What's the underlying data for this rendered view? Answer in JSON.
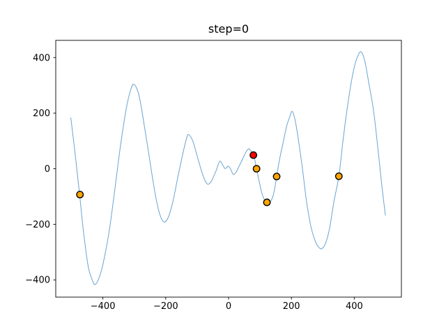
{
  "chart_data": {
    "type": "line",
    "title": "step=0",
    "xlabel": "",
    "ylabel": "",
    "xlim": [
      -550,
      550
    ],
    "ylim": [
      -462,
      462
    ],
    "grid": false,
    "legend": null,
    "xticks": [
      -400,
      -200,
      0,
      200,
      400
    ],
    "xtick_labels": [
      "−400",
      "−200",
      "0",
      "200",
      "400"
    ],
    "yticks": [
      -400,
      -200,
      0,
      200,
      400
    ],
    "ytick_labels": [
      "−400",
      "−200",
      "0",
      "200",
      "400"
    ],
    "colors": {
      "curve": "#6ba3cf",
      "sample_fill": "#ffa500",
      "current_fill": "#ff0000",
      "marker_edge": "#000000",
      "axes": "#000000",
      "background": "#ffffff"
    },
    "series": [
      {
        "name": "objective-curve",
        "type": "line",
        "color": "#6ba3cf",
        "linewidth": 1,
        "points": [
          [
            -502,
            183
          ],
          [
            -489,
            60
          ],
          [
            -474,
            -94
          ],
          [
            -462,
            -224
          ],
          [
            -447,
            -350
          ],
          [
            -434,
            -400
          ],
          [
            -425,
            -417
          ],
          [
            -414,
            -398
          ],
          [
            -400,
            -345
          ],
          [
            -380,
            -225
          ],
          [
            -362,
            -75
          ],
          [
            -344,
            83
          ],
          [
            -325,
            220
          ],
          [
            -312,
            282
          ],
          [
            -303,
            304
          ],
          [
            -292,
            288
          ],
          [
            -281,
            242
          ],
          [
            -258,
            83
          ],
          [
            -236,
            -75
          ],
          [
            -222,
            -152
          ],
          [
            -207,
            -191
          ],
          [
            -192,
            -175
          ],
          [
            -177,
            -117
          ],
          [
            -162,
            -33
          ],
          [
            -148,
            42
          ],
          [
            -136,
            100
          ],
          [
            -128,
            123
          ],
          [
            -114,
            100
          ],
          [
            -100,
            46
          ],
          [
            -85,
            -12
          ],
          [
            -75,
            -42
          ],
          [
            -66,
            -56
          ],
          [
            -56,
            -47
          ],
          [
            -48,
            -29
          ],
          [
            -38,
            -2
          ],
          [
            -28,
            27
          ],
          [
            -19,
            14
          ],
          [
            -12,
            1
          ],
          [
            -6,
            4
          ],
          [
            -1,
            9
          ],
          [
            6,
            0
          ],
          [
            15,
            -20
          ],
          [
            24,
            -12
          ],
          [
            33,
            8
          ],
          [
            41,
            26
          ],
          [
            49,
            46
          ],
          [
            57,
            63
          ],
          [
            62,
            70
          ],
          [
            65,
            72
          ],
          [
            70,
            66
          ],
          [
            75,
            58
          ],
          [
            79,
            49
          ],
          [
            84,
            29
          ],
          [
            89,
            0
          ],
          [
            96,
            -38
          ],
          [
            104,
            -79
          ],
          [
            112,
            -107
          ],
          [
            119,
            -119
          ],
          [
            126,
            -125
          ],
          [
            134,
            -117
          ],
          [
            141,
            -100
          ],
          [
            147,
            -70
          ],
          [
            153,
            -28
          ],
          [
            163,
            38
          ],
          [
            174,
            96
          ],
          [
            185,
            154
          ],
          [
            195,
            188
          ],
          [
            203,
            206
          ],
          [
            213,
            168
          ],
          [
            225,
            83
          ],
          [
            237,
            -17
          ],
          [
            248,
            -117
          ],
          [
            262,
            -208
          ],
          [
            274,
            -255
          ],
          [
            285,
            -280
          ],
          [
            296,
            -288
          ],
          [
            308,
            -270
          ],
          [
            321,
            -217
          ],
          [
            335,
            -120
          ],
          [
            351,
            -27
          ],
          [
            362,
            80
          ],
          [
            373,
            180
          ],
          [
            388,
            295
          ],
          [
            400,
            365
          ],
          [
            410,
            402
          ],
          [
            421,
            421
          ],
          [
            433,
            390
          ],
          [
            447,
            304
          ],
          [
            462,
            204
          ],
          [
            477,
            54
          ],
          [
            488,
            -63
          ],
          [
            499,
            -167
          ]
        ]
      },
      {
        "name": "sample-points",
        "type": "scatter",
        "color": "#ffa500",
        "edge_color": "#000000",
        "marker_radius": 4.7,
        "points": [
          [
            -473,
            -93
          ],
          [
            89,
            0
          ],
          [
            122,
            -121
          ],
          [
            153,
            -28
          ],
          [
            351,
            -27
          ]
        ]
      },
      {
        "name": "current-best-point",
        "type": "scatter",
        "color": "#ff0000",
        "edge_color": "#000000",
        "marker_radius": 4.7,
        "points": [
          [
            79,
            49
          ]
        ]
      }
    ]
  }
}
